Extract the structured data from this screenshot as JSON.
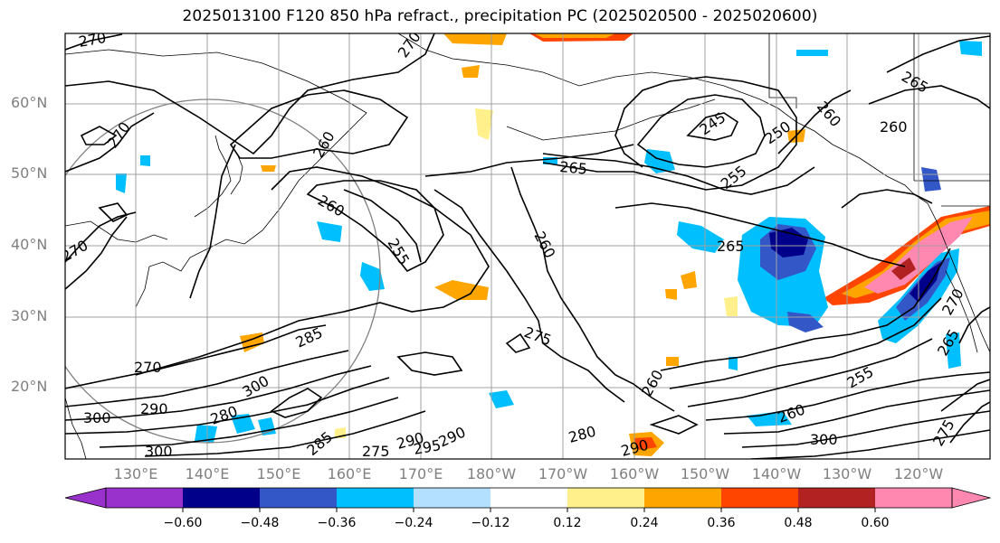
{
  "title": "2025013100 F120 850 hPa refract., precipitation PC (2025020500 - 2025020600)",
  "lat_labels": [
    "60°N",
    "50°N",
    "40°N",
    "30°N",
    "20°N"
  ],
  "lon_labels": [
    "130°E",
    "140°E",
    "150°E",
    "160°E",
    "170°E",
    "180°W",
    "170°W",
    "160°W",
    "150°W",
    "140°W",
    "130°W",
    "120°W"
  ],
  "colorbar": {
    "ticks": [
      "−0.60",
      "−0.48",
      "−0.36",
      "−0.24",
      "−0.12",
      "0.12",
      "0.24",
      "0.36",
      "0.48",
      "0.60"
    ],
    "colors": [
      "#9932cc",
      "#00008b",
      "#3457c8",
      "#00bfff",
      "#b3e0ff",
      "#ffffff",
      "#fff08c",
      "#ffa500",
      "#ff4500",
      "#b22222",
      "#ff88b0"
    ]
  },
  "contour_labels": {
    "c1": "270",
    "c2": "270",
    "c3": "270",
    "c4": "260",
    "c5": "260",
    "c6": "255",
    "c7": "260",
    "c8": "265",
    "c9": "245",
    "c10": "250",
    "c11": "255",
    "c12": "260",
    "c13": "265",
    "c14": "260",
    "c15": "265",
    "c16": "270",
    "c17": "275",
    "c18": "285",
    "c19": "270",
    "c20": "290",
    "c21": "300",
    "c22": "300",
    "c23": "280",
    "c24": "300",
    "c25": "275",
    "c26": "285",
    "c27": "290",
    "c28": "295",
    "c29": "290",
    "c30": "255",
    "c31": "260",
    "c32": "300",
    "c33": "275",
    "c34": "265",
    "c35": "260",
    "c36": "270",
    "c37": "280",
    "c38": "290"
  }
}
